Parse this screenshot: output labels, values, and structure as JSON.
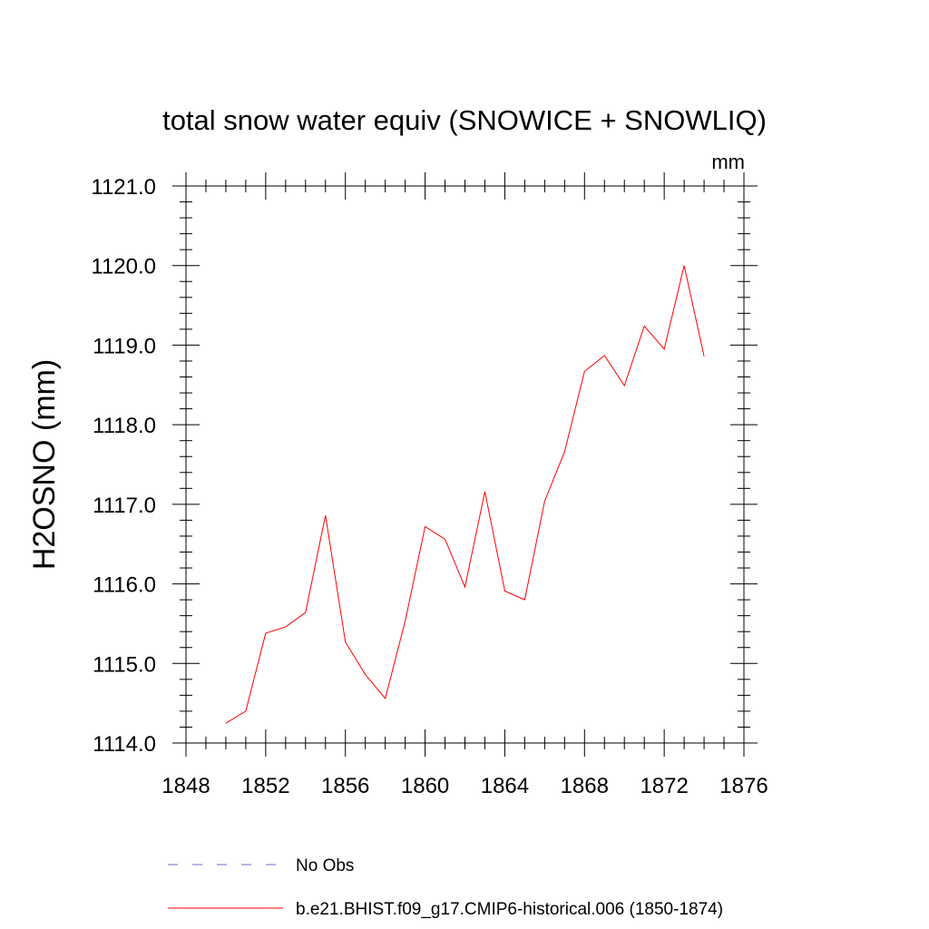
{
  "chart_data": {
    "type": "line",
    "title": "total snow water equiv (SNOWICE + SNOWLIQ)",
    "units": "mm",
    "xlabel": "",
    "ylabel": "H2OSNO  (mm)",
    "xlim": [
      1848,
      1876
    ],
    "ylim": [
      1114.0,
      1121.0
    ],
    "xticks": [
      1848,
      1852,
      1856,
      1860,
      1864,
      1868,
      1872,
      1876
    ],
    "xtick_labels": [
      "1848",
      "1852",
      "1856",
      "1860",
      "1864",
      "1868",
      "1872",
      "1876"
    ],
    "yticks": [
      1114.0,
      1115.0,
      1116.0,
      1117.0,
      1118.0,
      1119.0,
      1120.0,
      1121.0
    ],
    "ytick_labels": [
      "1114.0",
      "1115.0",
      "1116.0",
      "1117.0",
      "1118.0",
      "1119.0",
      "1120.0",
      "1121.0"
    ],
    "grid": false,
    "legend_position": "bottom",
    "series": [
      {
        "name": "No Obs",
        "color": "#6b6bd6",
        "style": "dashed",
        "x": [],
        "values": []
      },
      {
        "name": "b.e21.BHIST.f09_g17.CMIP6-historical.006 (1850-1874)",
        "color": "#ff0000",
        "style": "solid",
        "x": [
          1850,
          1851,
          1852,
          1853,
          1854,
          1855,
          1856,
          1857,
          1858,
          1859,
          1860,
          1861,
          1862,
          1863,
          1864,
          1865,
          1866,
          1867,
          1868,
          1869,
          1870,
          1871,
          1872,
          1873,
          1874
        ],
        "values": [
          1114.25,
          1114.4,
          1115.38,
          1115.46,
          1115.64,
          1116.86,
          1115.27,
          1114.86,
          1114.56,
          1115.53,
          1116.72,
          1116.56,
          1115.96,
          1117.16,
          1115.91,
          1115.8,
          1117.04,
          1117.66,
          1118.67,
          1118.87,
          1118.49,
          1119.24,
          1118.95,
          1120.0,
          1118.86
        ]
      }
    ]
  }
}
